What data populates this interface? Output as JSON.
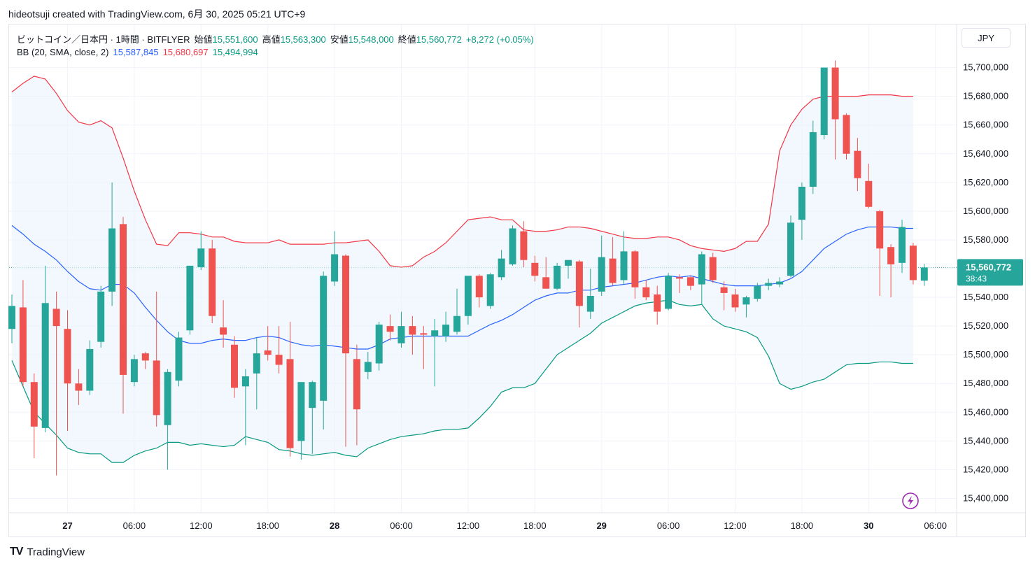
{
  "header": {
    "credit": "hideotsuji created with TradingView.com, 6月 30, 2025 05:21 UTC+9"
  },
  "legend": {
    "symbol": "ビットコイン／日本円 · 1時間 · BITFLYER",
    "open_label": "始値",
    "open": "15,551,600",
    "high_label": "高値",
    "high": "15,563,300",
    "low_label": "安値",
    "low": "15,548,000",
    "close_label": "終値",
    "close": "15,560,772",
    "change": "+8,272 (+0.05%)",
    "bb_label": "BB (20, SMA, close, 2)",
    "bb_basis": "15,587,845",
    "bb_upper": "15,680,697",
    "bb_lower": "15,494,994"
  },
  "currency": "JPY",
  "price_tag": {
    "price": "15,560,772",
    "countdown": "38:43"
  },
  "footer": {
    "brand_mark": "TV",
    "brand": "TradingView"
  },
  "colors": {
    "up": "#26a69a",
    "down": "#ef5350",
    "basis": "#2962ff",
    "upper": "#f23645",
    "lower": "#089981",
    "band_fill": "#eaf3fc"
  },
  "chart_data": {
    "type": "candlestick",
    "ylim": [
      15390000,
      15730000
    ],
    "yticks": [
      15400000,
      15420000,
      15440000,
      15460000,
      15480000,
      15500000,
      15520000,
      15540000,
      15560000,
      15580000,
      15600000,
      15620000,
      15640000,
      15660000,
      15680000,
      15700000
    ],
    "ytick_labels": [
      "15,400,000",
      "15,420,000",
      "15,440,000",
      "15,460,000",
      "15,480,000",
      "15,500,000",
      "15,520,000",
      "15,540,000",
      "15,560,000",
      "15,580,000",
      "15,600,000",
      "15,620,000",
      "15,640,000",
      "15,660,000",
      "15,680,000",
      "15,700,000"
    ],
    "xticks": [
      {
        "index": 5,
        "label": "27"
      },
      {
        "index": 11,
        "label": "06:00"
      },
      {
        "index": 17,
        "label": "12:00"
      },
      {
        "index": 23,
        "label": "18:00"
      },
      {
        "index": 29,
        "label": "28"
      },
      {
        "index": 35,
        "label": "06:00"
      },
      {
        "index": 41,
        "label": "12:00"
      },
      {
        "index": 47,
        "label": "18:00"
      },
      {
        "index": 53,
        "label": "29"
      },
      {
        "index": 59,
        "label": "06:00"
      },
      {
        "index": 65,
        "label": "12:00"
      },
      {
        "index": 71,
        "label": "18:00"
      },
      {
        "index": 77,
        "label": "30"
      },
      {
        "index": 83,
        "label": "06:00"
      }
    ],
    "candles": [
      {
        "o": 15518000,
        "h": 15542000,
        "l": 15508000,
        "c": 15534000
      },
      {
        "o": 15533000,
        "h": 15552000,
        "l": 15478000,
        "c": 15481000
      },
      {
        "o": 15481000,
        "h": 15487000,
        "l": 15428000,
        "c": 15450000
      },
      {
        "o": 15449000,
        "h": 15562000,
        "l": 15446000,
        "c": 15536000
      },
      {
        "o": 15532000,
        "h": 15544000,
        "l": 15416000,
        "c": 15520000
      },
      {
        "o": 15518000,
        "h": 15531000,
        "l": 15447000,
        "c": 15480000
      },
      {
        "o": 15480000,
        "h": 15490000,
        "l": 15465000,
        "c": 15475000
      },
      {
        "o": 15475000,
        "h": 15510000,
        "l": 15472000,
        "c": 15504000
      },
      {
        "o": 15509000,
        "h": 15548000,
        "l": 15505000,
        "c": 15544000
      },
      {
        "o": 15544000,
        "h": 15620000,
        "l": 15534000,
        "c": 15588000
      },
      {
        "o": 15591000,
        "h": 15596000,
        "l": 15459000,
        "c": 15486000
      },
      {
        "o": 15481000,
        "h": 15500000,
        "l": 15478000,
        "c": 15497000
      },
      {
        "o": 15501000,
        "h": 15502000,
        "l": 15490000,
        "c": 15496000
      },
      {
        "o": 15496000,
        "h": 15544000,
        "l": 15450000,
        "c": 15458000
      },
      {
        "o": 15451000,
        "h": 15490000,
        "l": 15420000,
        "c": 15488000
      },
      {
        "o": 15482000,
        "h": 15516000,
        "l": 15478000,
        "c": 15512000
      },
      {
        "o": 15517000,
        "h": 15562000,
        "l": 15514000,
        "c": 15562000
      },
      {
        "o": 15561000,
        "h": 15586000,
        "l": 15559000,
        "c": 15574000
      },
      {
        "o": 15574000,
        "h": 15580000,
        "l": 15522000,
        "c": 15527000
      },
      {
        "o": 15519000,
        "h": 15538000,
        "l": 15505000,
        "c": 15514000
      },
      {
        "o": 15507000,
        "h": 15513000,
        "l": 15470000,
        "c": 15477000
      },
      {
        "o": 15478000,
        "h": 15490000,
        "l": 15437000,
        "c": 15485000
      },
      {
        "o": 15487000,
        "h": 15512000,
        "l": 15462000,
        "c": 15501000
      },
      {
        "o": 15503000,
        "h": 15520000,
        "l": 15496000,
        "c": 15500000
      },
      {
        "o": 15500000,
        "h": 15520000,
        "l": 15487000,
        "c": 15493000
      },
      {
        "o": 15497000,
        "h": 15523000,
        "l": 15429000,
        "c": 15435000
      },
      {
        "o": 15440000,
        "h": 15480000,
        "l": 15427000,
        "c": 15481000
      },
      {
        "o": 15463000,
        "h": 15482000,
        "l": 15431000,
        "c": 15481000
      },
      {
        "o": 15468000,
        "h": 15558000,
        "l": 15448000,
        "c": 15555000
      },
      {
        "o": 15551000,
        "h": 15586000,
        "l": 15548000,
        "c": 15570000
      },
      {
        "o": 15569000,
        "h": 15570000,
        "l": 15436000,
        "c": 15501000
      },
      {
        "o": 15497000,
        "h": 15507000,
        "l": 15437000,
        "c": 15462000
      },
      {
        "o": 15488000,
        "h": 15502000,
        "l": 15483000,
        "c": 15495000
      },
      {
        "o": 15494000,
        "h": 15523000,
        "l": 15489000,
        "c": 15521000
      },
      {
        "o": 15520000,
        "h": 15528000,
        "l": 15510000,
        "c": 15516000
      },
      {
        "o": 15508000,
        "h": 15530000,
        "l": 15505000,
        "c": 15520000
      },
      {
        "o": 15520000,
        "h": 15527000,
        "l": 15500000,
        "c": 15514000
      },
      {
        "o": 15515000,
        "h": 15520000,
        "l": 15490000,
        "c": 15514000
      },
      {
        "o": 15513000,
        "h": 15525000,
        "l": 15478000,
        "c": 15517000
      },
      {
        "o": 15513000,
        "h": 15530000,
        "l": 15509000,
        "c": 15521000
      },
      {
        "o": 15516000,
        "h": 15546000,
        "l": 15514000,
        "c": 15527000
      },
      {
        "o": 15527000,
        "h": 15553000,
        "l": 15521000,
        "c": 15555000
      },
      {
        "o": 15555000,
        "h": 15556000,
        "l": 15533000,
        "c": 15540000
      },
      {
        "o": 15534000,
        "h": 15557000,
        "l": 15532000,
        "c": 15556000
      },
      {
        "o": 15554000,
        "h": 15573000,
        "l": 15552000,
        "c": 15567000
      },
      {
        "o": 15563000,
        "h": 15590000,
        "l": 15562000,
        "c": 15588000
      },
      {
        "o": 15586000,
        "h": 15593000,
        "l": 15561000,
        "c": 15566000
      },
      {
        "o": 15564000,
        "h": 15569000,
        "l": 15551000,
        "c": 15555000
      },
      {
        "o": 15554000,
        "h": 15568000,
        "l": 15546000,
        "c": 15546000
      },
      {
        "o": 15546000,
        "h": 15564000,
        "l": 15545000,
        "c": 15562000
      },
      {
        "o": 15562000,
        "h": 15565000,
        "l": 15553000,
        "c": 15566000
      },
      {
        "o": 15565000,
        "h": 15566000,
        "l": 15519000,
        "c": 15534000
      },
      {
        "o": 15530000,
        "h": 15560000,
        "l": 15525000,
        "c": 15541000
      },
      {
        "o": 15544000,
        "h": 15583000,
        "l": 15541000,
        "c": 15568000
      },
      {
        "o": 15567000,
        "h": 15582000,
        "l": 15548000,
        "c": 15550000
      },
      {
        "o": 15552000,
        "h": 15586000,
        "l": 15549000,
        "c": 15572000
      },
      {
        "o": 15572000,
        "h": 15573000,
        "l": 15539000,
        "c": 15547000
      },
      {
        "o": 15547000,
        "h": 15552000,
        "l": 15538000,
        "c": 15540000
      },
      {
        "o": 15542000,
        "h": 15548000,
        "l": 15521000,
        "c": 15530000
      },
      {
        "o": 15532000,
        "h": 15557000,
        "l": 15531000,
        "c": 15555000
      },
      {
        "o": 15554000,
        "h": 15556000,
        "l": 15543000,
        "c": 15553000
      },
      {
        "o": 15554000,
        "h": 15555000,
        "l": 15545000,
        "c": 15548000
      },
      {
        "o": 15549000,
        "h": 15572000,
        "l": 15535000,
        "c": 15570000
      },
      {
        "o": 15568000,
        "h": 15571000,
        "l": 15550000,
        "c": 15552000
      },
      {
        "o": 15547000,
        "h": 15551000,
        "l": 15531000,
        "c": 15543000
      },
      {
        "o": 15542000,
        "h": 15546000,
        "l": 15530000,
        "c": 15533000
      },
      {
        "o": 15535000,
        "h": 15541000,
        "l": 15526000,
        "c": 15540000
      },
      {
        "o": 15539000,
        "h": 15550000,
        "l": 15537000,
        "c": 15548000
      },
      {
        "o": 15548000,
        "h": 15553000,
        "l": 15545000,
        "c": 15550000
      },
      {
        "o": 15549000,
        "h": 15554000,
        "l": 15547000,
        "c": 15551000
      },
      {
        "o": 15555000,
        "h": 15597000,
        "l": 15554000,
        "c": 15592000
      },
      {
        "o": 15594000,
        "h": 15620000,
        "l": 15580000,
        "c": 15617000
      },
      {
        "o": 15617000,
        "h": 15663000,
        "l": 15612000,
        "c": 15655000
      },
      {
        "o": 15653000,
        "h": 15700000,
        "l": 15650000,
        "c": 15700000
      },
      {
        "o": 15700000,
        "h": 15705000,
        "l": 15636000,
        "c": 15664000
      },
      {
        "o": 15667000,
        "h": 15668000,
        "l": 15636000,
        "c": 15640000
      },
      {
        "o": 15642000,
        "h": 15651000,
        "l": 15614000,
        "c": 15623000
      },
      {
        "o": 15621000,
        "h": 15633000,
        "l": 15602000,
        "c": 15603000
      },
      {
        "o": 15600000,
        "h": 15601000,
        "l": 15541000,
        "c": 15574000
      },
      {
        "o": 15575000,
        "h": 15577000,
        "l": 15540000,
        "c": 15563000
      },
      {
        "o": 15564000,
        "h": 15594000,
        "l": 15557000,
        "c": 15589000
      },
      {
        "o": 15576000,
        "h": 15578000,
        "l": 15549000,
        "c": 15552000
      },
      {
        "o": 15551600,
        "h": 15563300,
        "l": 15548000,
        "c": 15560772
      }
    ],
    "bb_basis": [
      15590000,
      15584000,
      15577000,
      15572000,
      15566000,
      15558000,
      15551000,
      15546000,
      15545000,
      15549000,
      15549000,
      15543000,
      15533000,
      15524000,
      15516000,
      15510000,
      15508000,
      15508000,
      15510000,
      15511000,
      15510000,
      15510000,
      15512000,
      15513000,
      15512000,
      15509000,
      15507000,
      15506000,
      15507000,
      15506000,
      15505000,
      15504000,
      15504000,
      15507000,
      15511000,
      15512000,
      15513000,
      15513000,
      15513000,
      15513000,
      15513000,
      15513000,
      15517000,
      15521000,
      15524000,
      15528000,
      15533000,
      15538000,
      15541000,
      15543000,
      15543000,
      15545000,
      15545000,
      15547000,
      15548000,
      15549000,
      15550000,
      15552000,
      15554000,
      15555000,
      15554000,
      15555000,
      15553000,
      15551000,
      15549000,
      15548000,
      15548000,
      15548000,
      15549000,
      15550000,
      15553000,
      15558000,
      15566000,
      15574000,
      15579000,
      15584000,
      15587000,
      15589000,
      15589000,
      15589000,
      15588000,
      15588000
    ],
    "bb_upper": [
      15683000,
      15689000,
      15694000,
      15692000,
      15682000,
      15670000,
      15662000,
      15660000,
      15663000,
      15658000,
      15637000,
      15614000,
      15594000,
      15577000,
      15576000,
      15585000,
      15585000,
      15584000,
      15582000,
      15582000,
      15579000,
      15578000,
      15578000,
      15578000,
      15580000,
      15577000,
      15577000,
      15577000,
      15577000,
      15578000,
      15578000,
      15579000,
      15580000,
      15572000,
      15562000,
      15561000,
      15562000,
      15568000,
      15572000,
      15578000,
      15586000,
      15594000,
      15595000,
      15596000,
      15594000,
      15594000,
      15587000,
      15586000,
      15586000,
      15587000,
      15589000,
      15589000,
      15588000,
      15586000,
      15584000,
      15582000,
      15581000,
      15581000,
      15582000,
      15582000,
      15580000,
      15576000,
      15574000,
      15573000,
      15572000,
      15574000,
      15579000,
      15579000,
      15591000,
      15642000,
      15660000,
      15671000,
      15678000,
      15680000,
      15680000,
      15680000,
      15680000,
      15681000,
      15681000,
      15681000,
      15680000,
      15680000
    ],
    "bb_lower": [
      15496000,
      15478000,
      15460000,
      15452000,
      15444000,
      15435000,
      15432000,
      15431000,
      15431000,
      15425000,
      15425000,
      15430000,
      15433000,
      15435000,
      15439000,
      15439000,
      15437000,
      15438000,
      15437000,
      15436000,
      15437000,
      15443000,
      15441000,
      15439000,
      15434000,
      15433000,
      15431000,
      15430000,
      15431000,
      15432000,
      15430000,
      15429000,
      15435000,
      15438000,
      15441000,
      15443000,
      15444000,
      15445000,
      15447000,
      15448000,
      15448000,
      15449000,
      15456000,
      15464000,
      15474000,
      15477000,
      15477000,
      15480000,
      15490000,
      15500000,
      15505000,
      15510000,
      15515000,
      15522000,
      15526000,
      15530000,
      15534000,
      15536000,
      15537000,
      15538000,
      15535000,
      15534000,
      15535000,
      15525000,
      15520000,
      15518000,
      15516000,
      15512000,
      15499000,
      15480000,
      15476000,
      15478000,
      15481000,
      15483000,
      15488000,
      15493000,
      15494000,
      15494000,
      15495000,
      15495000,
      15494000,
      15494000
    ]
  }
}
